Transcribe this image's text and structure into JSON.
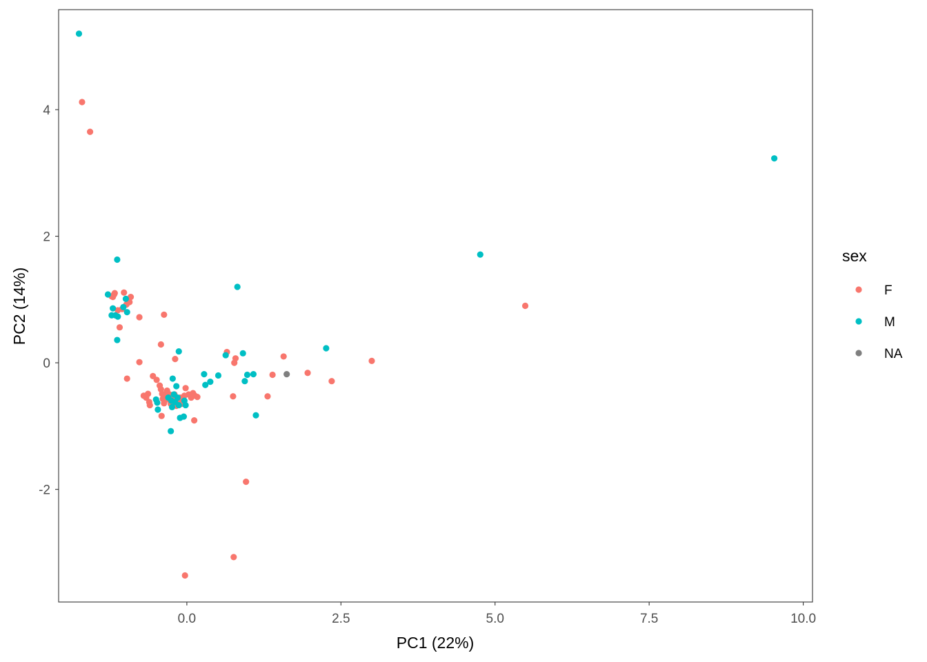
{
  "chart_data": {
    "type": "scatter",
    "xlabel": "PC1 (22%)",
    "ylabel": "PC2 (14%)",
    "xlim": [
      -2.08,
      10.15
    ],
    "ylim": [
      -3.78,
      5.58
    ],
    "x_ticks": [
      0.0,
      2.5,
      5.0,
      7.5,
      10.0
    ],
    "x_tick_labels": [
      "0.0",
      "2.5",
      "5.0",
      "7.5",
      "10.0"
    ],
    "y_ticks": [
      -2,
      0,
      2,
      4
    ],
    "y_tick_labels": [
      "-2",
      "0",
      "2",
      "4"
    ],
    "grid": false,
    "legend": {
      "title": "sex",
      "position": "right"
    },
    "series": [
      {
        "name": "F",
        "color": "#F8766D",
        "points": [
          [
            -1.7,
            4.12
          ],
          [
            -1.57,
            3.65
          ],
          [
            -1.22,
            1.05
          ],
          [
            -1.2,
            1.04
          ],
          [
            -1.18,
            1.08
          ],
          [
            -1.17,
            1.1
          ],
          [
            -1.12,
            0.83
          ],
          [
            -1.05,
            0.85
          ],
          [
            -1.02,
            1.11
          ],
          [
            -0.98,
            0.92
          ],
          [
            -0.96,
            1.0
          ],
          [
            -0.93,
            0.96
          ],
          [
            -0.91,
            1.04
          ],
          [
            -1.09,
            0.56
          ],
          [
            -0.77,
            0.72
          ],
          [
            -0.97,
            -0.25
          ],
          [
            -0.77,
            0.01
          ],
          [
            -0.7,
            -0.52
          ],
          [
            -0.66,
            -0.55
          ],
          [
            -0.63,
            -0.49
          ],
          [
            -0.61,
            -0.62
          ],
          [
            -0.6,
            -0.67
          ],
          [
            -0.55,
            -0.21
          ],
          [
            -0.49,
            -0.27
          ],
          [
            -0.44,
            -0.36
          ],
          [
            -0.42,
            -0.42
          ],
          [
            -0.4,
            -0.49
          ],
          [
            -0.42,
            0.29
          ],
          [
            -0.37,
            0.76
          ],
          [
            -0.41,
            -0.84
          ],
          [
            -0.39,
            -0.57
          ],
          [
            -0.37,
            -0.64
          ],
          [
            -0.35,
            -0.52
          ],
          [
            -0.32,
            -0.44
          ],
          [
            -0.3,
            -0.58
          ],
          [
            -0.28,
            -0.5
          ],
          [
            -0.26,
            -0.65
          ],
          [
            -0.24,
            -0.55
          ],
          [
            -0.2,
            -0.5
          ],
          [
            -0.18,
            -0.6
          ],
          [
            -0.17,
            -0.68
          ],
          [
            -0.19,
            0.06
          ],
          [
            -0.14,
            -0.62
          ],
          [
            -0.11,
            -0.55
          ],
          [
            -0.09,
            -0.65
          ],
          [
            -0.06,
            -0.58
          ],
          [
            -0.04,
            -0.52
          ],
          [
            -0.02,
            -0.4
          ],
          [
            0.03,
            -0.5
          ],
          [
            0.07,
            -0.55
          ],
          [
            0.1,
            -0.48
          ],
          [
            0.13,
            -0.52
          ],
          [
            0.17,
            -0.54
          ],
          [
            0.12,
            -0.91
          ],
          [
            -0.03,
            -3.36
          ],
          [
            0.65,
            0.17
          ],
          [
            0.75,
            -0.53
          ],
          [
            0.77,
            0.0
          ],
          [
            0.79,
            0.07
          ],
          [
            0.76,
            -3.07
          ],
          [
            0.96,
            -1.88
          ],
          [
            1.31,
            -0.53
          ],
          [
            1.39,
            -0.19
          ],
          [
            1.57,
            0.1
          ],
          [
            1.96,
            -0.16
          ],
          [
            2.35,
            -0.29
          ],
          [
            3.0,
            0.03
          ],
          [
            5.49,
            0.9
          ]
        ]
      },
      {
        "name": "M",
        "color": "#00BFC4",
        "points": [
          [
            -1.75,
            5.2
          ],
          [
            -1.13,
            1.63
          ],
          [
            -1.28,
            1.08
          ],
          [
            -1.22,
            0.75
          ],
          [
            -1.2,
            0.86
          ],
          [
            -1.16,
            0.75
          ],
          [
            -1.12,
            0.73
          ],
          [
            -1.03,
            0.88
          ],
          [
            -0.99,
            1.01
          ],
          [
            -0.97,
            0.8
          ],
          [
            -1.13,
            0.36
          ],
          [
            -0.5,
            -0.58
          ],
          [
            -0.48,
            -0.63
          ],
          [
            -0.47,
            -0.74
          ],
          [
            -0.3,
            -0.55
          ],
          [
            -0.25,
            -0.6
          ],
          [
            -0.23,
            -0.25
          ],
          [
            -0.21,
            -0.5
          ],
          [
            -0.19,
            -0.62
          ],
          [
            -0.17,
            -0.37
          ],
          [
            -0.15,
            -0.55
          ],
          [
            -0.13,
            -0.67
          ],
          [
            -0.11,
            -0.87
          ],
          [
            -0.26,
            -1.08
          ],
          [
            -0.24,
            -0.7
          ],
          [
            -0.13,
            0.18
          ],
          [
            -0.05,
            -0.85
          ],
          [
            -0.04,
            -0.6
          ],
          [
            -0.02,
            -0.67
          ],
          [
            0.28,
            -0.18
          ],
          [
            0.3,
            -0.35
          ],
          [
            0.38,
            -0.3
          ],
          [
            0.51,
            -0.2
          ],
          [
            0.63,
            0.12
          ],
          [
            0.82,
            1.2
          ],
          [
            0.91,
            0.15
          ],
          [
            0.94,
            -0.29
          ],
          [
            0.98,
            -0.19
          ],
          [
            1.08,
            -0.18
          ],
          [
            1.12,
            -0.83
          ],
          [
            2.26,
            0.23
          ],
          [
            4.76,
            1.71
          ],
          [
            9.53,
            3.23
          ]
        ]
      },
      {
        "name": "NA",
        "color": "#7F7F7F",
        "points": [
          [
            1.62,
            -0.18
          ]
        ]
      }
    ]
  }
}
